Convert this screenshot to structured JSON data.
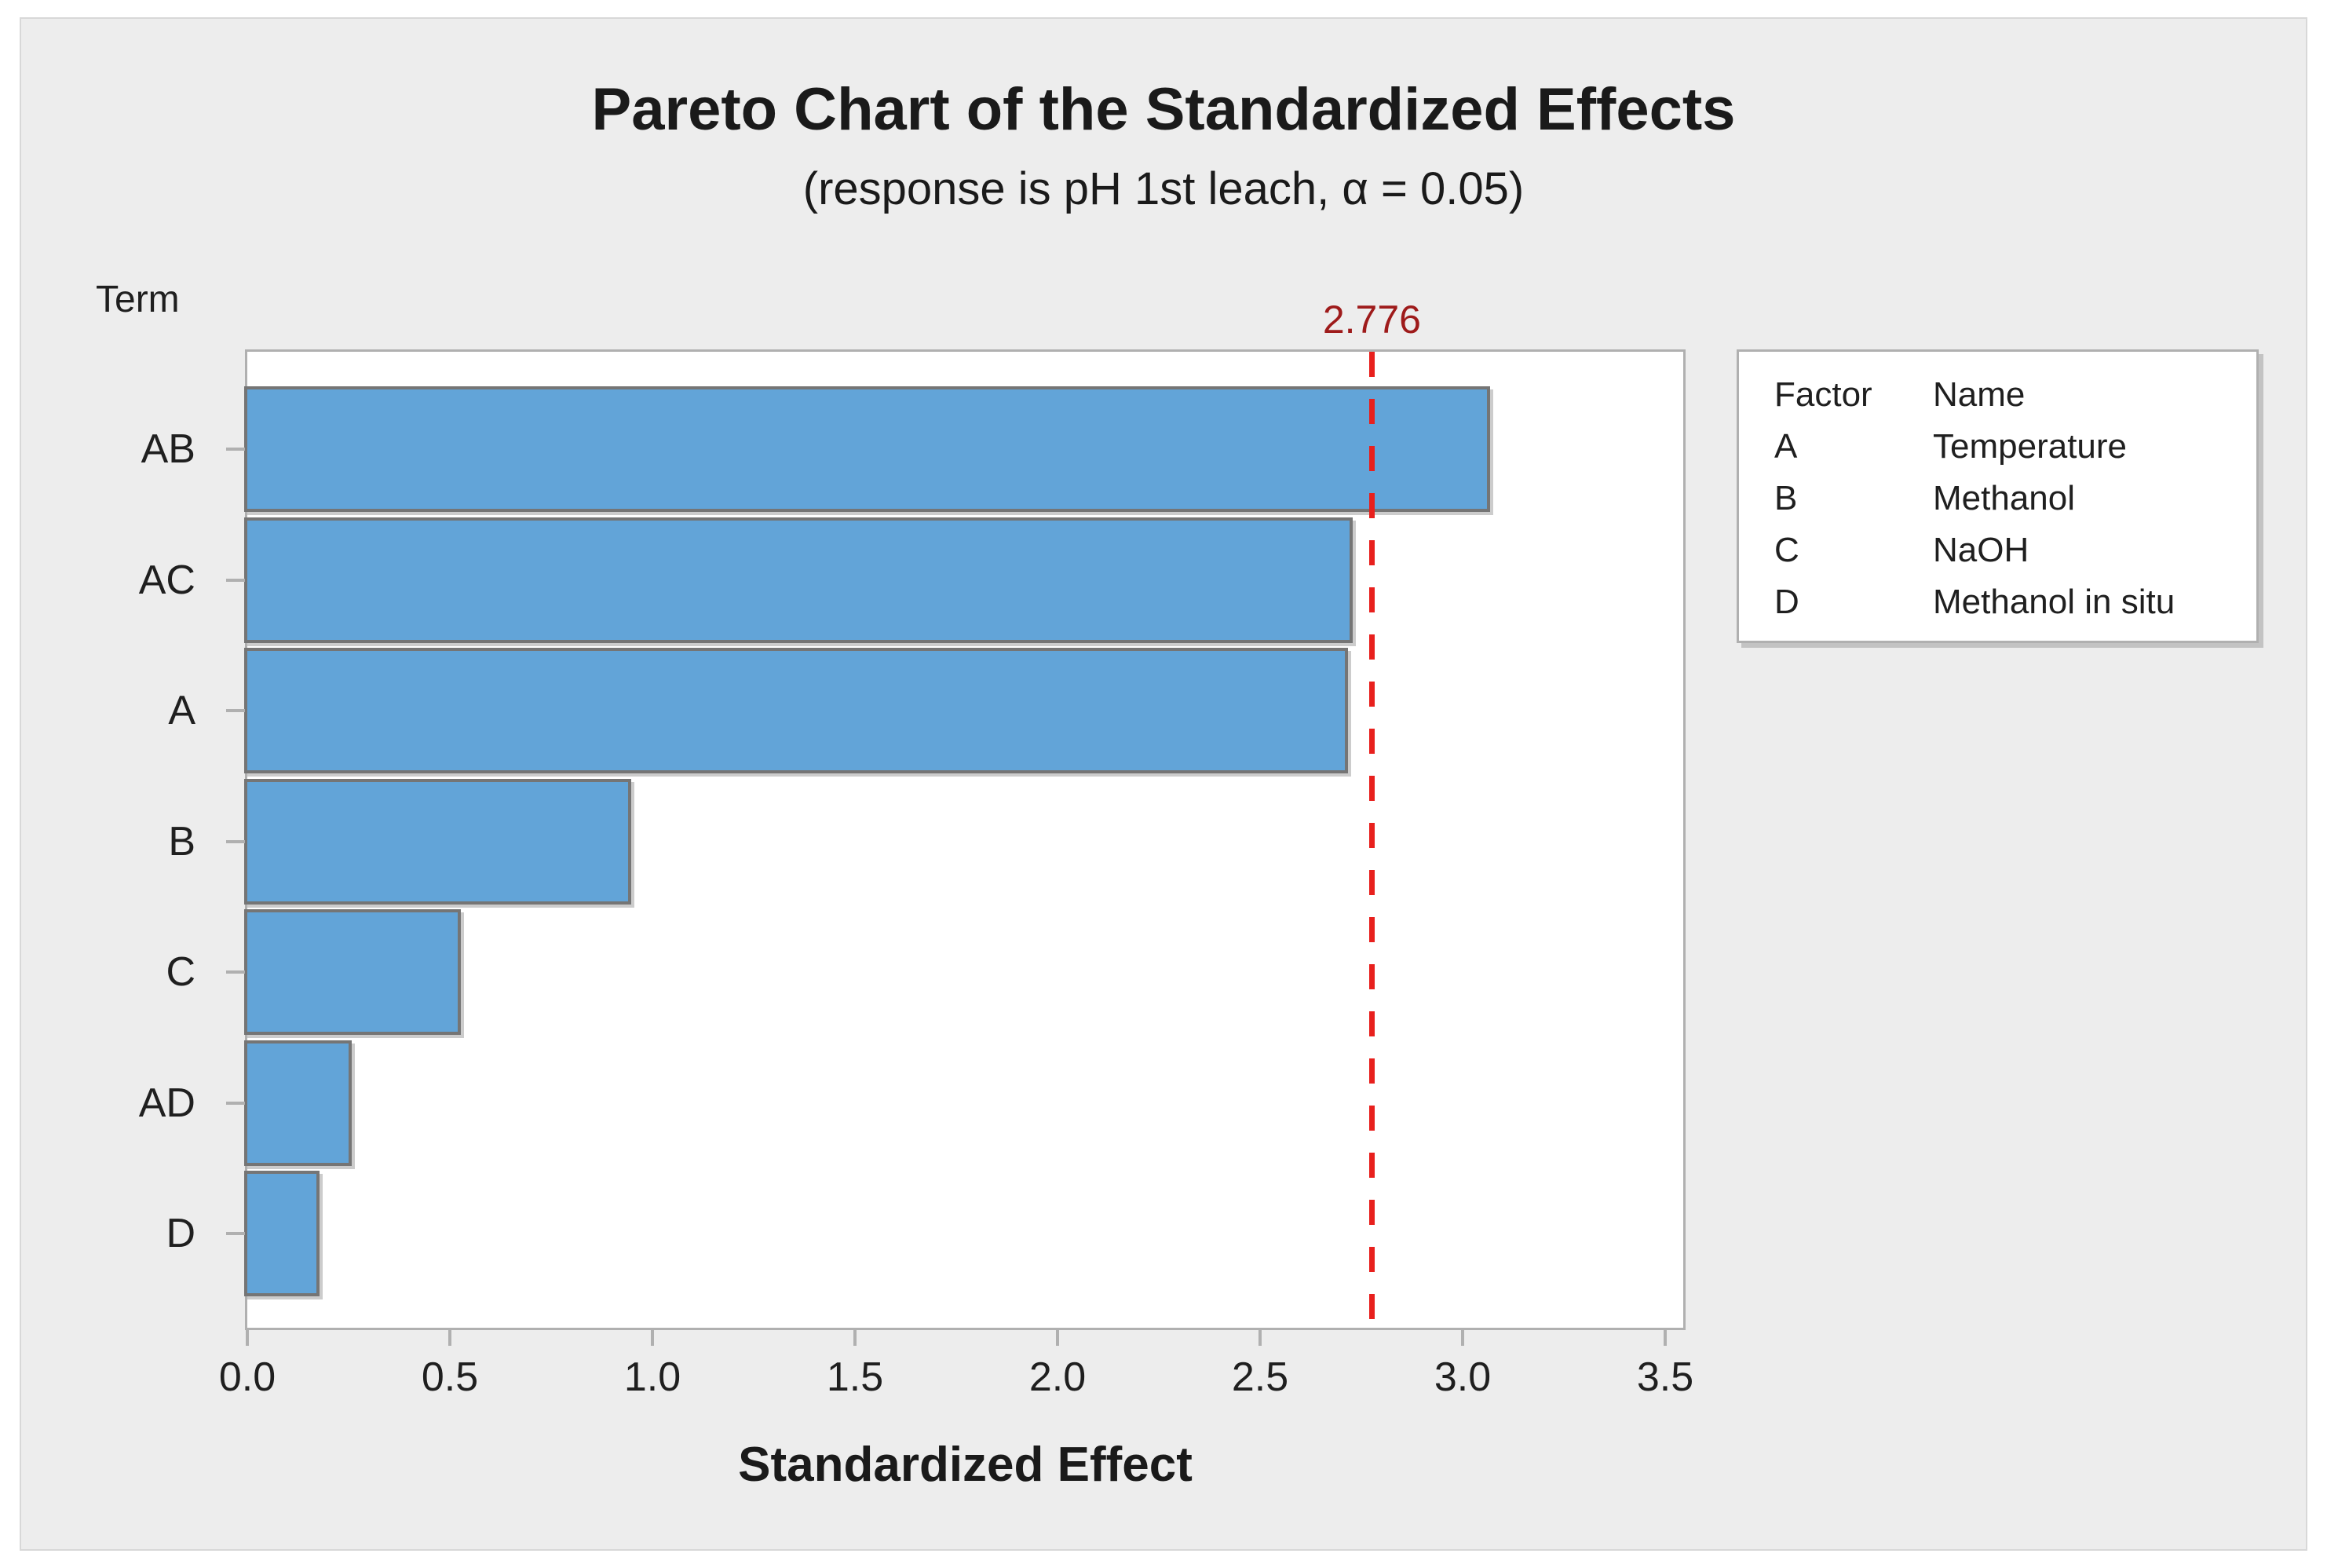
{
  "header": {
    "title": "Pareto Chart of the Standardized Effects",
    "subtitle": "(response is pH 1st leach, α = 0.05)"
  },
  "axes": {
    "y_title": "Term",
    "x_title": "Standardized Effect",
    "x_tick_labels": [
      "0.0",
      "0.5",
      "1.0",
      "1.5",
      "2.0",
      "2.5",
      "3.0",
      "3.5"
    ]
  },
  "reference": {
    "label": "2.776",
    "value": 2.776
  },
  "legend": {
    "header": {
      "factor": "Factor",
      "name": "Name"
    },
    "rows": [
      {
        "factor": "A",
        "name": "Temperature"
      },
      {
        "factor": "B",
        "name": "Methanol"
      },
      {
        "factor": "C",
        "name": "NaOH"
      },
      {
        "factor": "D",
        "name": "Methanol in situ"
      }
    ]
  },
  "colors": {
    "bar_fill": "#62a4d8",
    "bar_border": "#757575",
    "reference_line": "#e8201d",
    "reference_label_text": "#9e1b1b",
    "plot_border": "#b0b0b0",
    "canvas_background": "#ededed"
  },
  "chart_data": {
    "type": "bar",
    "orientation": "horizontal",
    "title": "Pareto Chart of the Standardized Effects",
    "subtitle": "(response is pH 1st leach, α = 0.05)",
    "xlabel": "Standardized Effect",
    "ylabel": "Term",
    "categories": [
      "AB",
      "AC",
      "A",
      "B",
      "C",
      "AD",
      "D"
    ],
    "values": [
      3.06,
      2.72,
      2.71,
      0.94,
      0.52,
      0.25,
      0.17
    ],
    "xlim": [
      0,
      3.54
    ],
    "xticks": [
      0.0,
      0.5,
      1.0,
      1.5,
      2.0,
      2.5,
      3.0,
      3.5
    ],
    "grid": false,
    "reference_line": {
      "value": 2.776,
      "label": "2.776",
      "alpha": 0.05
    },
    "legend_position": "right",
    "legend_table": {
      "columns": [
        "Factor",
        "Name"
      ],
      "rows": [
        [
          "A",
          "Temperature"
        ],
        [
          "B",
          "Methanol"
        ],
        [
          "C",
          "NaOH"
        ],
        [
          "D",
          "Methanol in situ"
        ]
      ]
    }
  }
}
